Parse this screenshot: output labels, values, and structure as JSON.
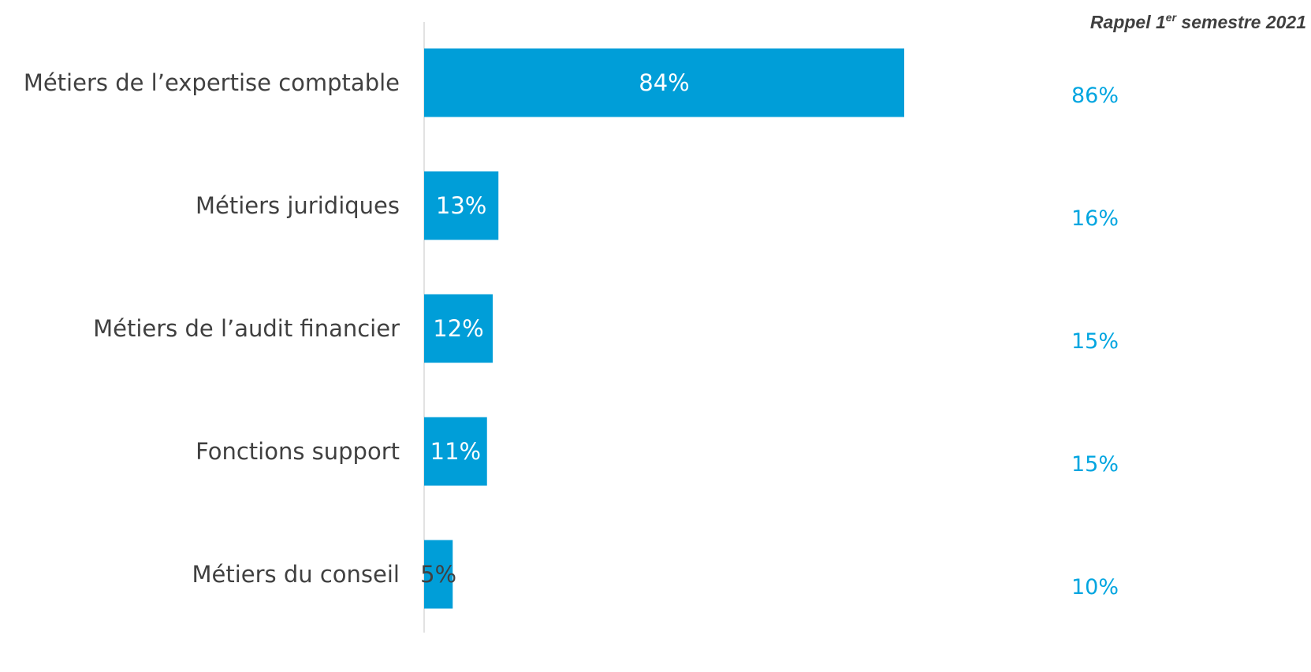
{
  "rappel_header": {
    "prefix": "Rappel 1",
    "superscript": "er",
    "suffix": " semestre 2021"
  },
  "colors": {
    "bar": "#009ed8",
    "rappel_text": "#00a5e0",
    "category_text": "#404040",
    "axis": "#d9d9d9",
    "label_inside": "#ffffff",
    "label_small": "#404040"
  },
  "chart_data": {
    "type": "bar",
    "orientation": "horizontal",
    "categories": [
      "Métiers de l’expertise comptable",
      "Métiers juridiques",
      "Métiers de l’audit financier",
      "Fonctions support",
      "Métiers du conseil"
    ],
    "series": [
      {
        "values": [
          84,
          13,
          12,
          11,
          5
        ],
        "labels": [
          "84%",
          "13%",
          "12%",
          "11%",
          "5%"
        ]
      }
    ],
    "comparison": {
      "values": [
        86,
        16,
        15,
        15,
        10
      ],
      "labels": [
        "86%",
        "16%",
        "15%",
        "15%",
        "10%"
      ]
    },
    "xlim": [
      0,
      100
    ],
    "grid": false,
    "legend": "none"
  }
}
